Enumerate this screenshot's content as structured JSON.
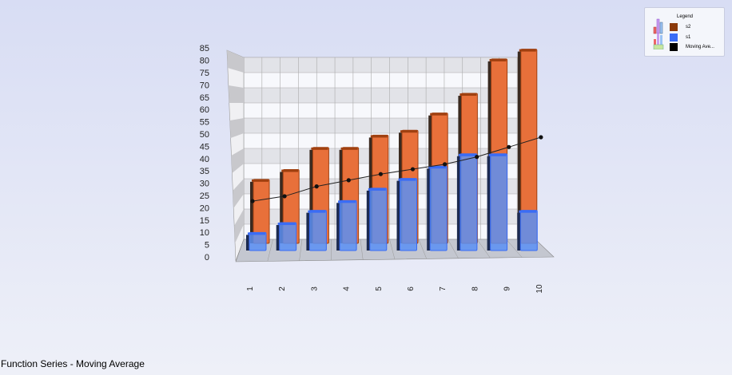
{
  "chart_data": {
    "type": "bar",
    "subtype": "3d-bar-with-line",
    "title": "Function Series - Moving Average",
    "categories": [
      "1",
      "2",
      "3",
      "4",
      "5",
      "6",
      "7",
      "8",
      "9",
      "10"
    ],
    "series": [
      {
        "name": "s2",
        "type": "bar",
        "color": "#e8703a",
        "values": [
          27,
          31,
          40,
          40,
          45,
          47,
          54,
          62,
          76,
          80
        ]
      },
      {
        "name": "s1",
        "type": "bar",
        "color": "#5b8ff5",
        "values": [
          8,
          12,
          17,
          21,
          26,
          30,
          35,
          40,
          40,
          17
        ]
      },
      {
        "name": "Moving Ave...",
        "type": "line",
        "color": "#000000",
        "values": [
          24,
          26,
          30,
          32.5,
          35,
          37,
          39,
          42,
          46,
          50
        ]
      }
    ],
    "yticks": [
      "0",
      "5",
      "10",
      "15",
      "20",
      "25",
      "30",
      "35",
      "40",
      "45",
      "50",
      "55",
      "60",
      "65",
      "70",
      "75",
      "80",
      "85"
    ],
    "ylim": [
      0,
      85
    ],
    "grid": true,
    "legend": {
      "title": "Legend",
      "placement": "top-right",
      "swatches": [
        "#8b3a0a",
        "#3a6cf5",
        "#000000"
      ]
    }
  }
}
